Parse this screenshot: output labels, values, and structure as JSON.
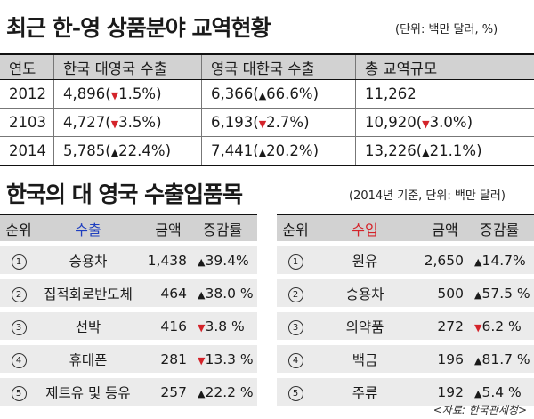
{
  "title1": "최근 한-영 상품분야 교역현황",
  "unit1": "(단위: 백만 달러, %)",
  "table1": {
    "headers": [
      "연도",
      "한국 대영국 수출",
      "영국 대한국 수출",
      "총 교역규모"
    ],
    "rows": [
      {
        "year": "2012",
        "kr": "4,896",
        "kr_dir": "down",
        "kr_pct": "1.5%",
        "uk": "6,366",
        "uk_dir": "up",
        "uk_pct": "66.6%",
        "tot": "11,262",
        "tot_dir": "",
        "tot_pct": ""
      },
      {
        "year": "2103",
        "kr": "4,727",
        "kr_dir": "down",
        "kr_pct": "3.5%",
        "uk": "6,193",
        "uk_dir": "down",
        "uk_pct": "2.7%",
        "tot": "10,920",
        "tot_dir": "down",
        "tot_pct": "3.0%"
      },
      {
        "year": "2014",
        "kr": "5,785",
        "kr_dir": "up",
        "kr_pct": "22.4%",
        "uk": "7,441",
        "uk_dir": "up",
        "uk_pct": "20.2%",
        "tot": "13,226",
        "tot_dir": "up",
        "tot_pct": "21.1%"
      }
    ]
  },
  "title2": "한국의 대 영국 수출입품목",
  "unit2": "(2014년 기준, 단위: 백만 달러)",
  "exports": {
    "header": {
      "rank": "순위",
      "item": "수출",
      "amount": "금액",
      "rate": "증감률"
    },
    "rows": [
      {
        "rank": "①",
        "item": "승용차",
        "amount": "1,438",
        "dir": "up",
        "rate": "39.4%"
      },
      {
        "rank": "②",
        "item": "집적회로반도체",
        "amount": "464",
        "dir": "up",
        "rate": "38.0 %"
      },
      {
        "rank": "③",
        "item": "선박",
        "amount": "416",
        "dir": "down",
        "rate": "3.8 %"
      },
      {
        "rank": "④",
        "item": "휴대폰",
        "amount": "281",
        "dir": "down",
        "rate": "13.3 %"
      },
      {
        "rank": "⑤",
        "item": "제트유 및 등유",
        "amount": "257",
        "dir": "up",
        "rate": "22.2 %"
      }
    ]
  },
  "imports": {
    "header": {
      "rank": "순위",
      "item": "수입",
      "amount": "금액",
      "rate": "증감률"
    },
    "rows": [
      {
        "rank": "①",
        "item": "원유",
        "amount": "2,650",
        "dir": "up",
        "rate": "14.7%"
      },
      {
        "rank": "②",
        "item": "승용차",
        "amount": "500",
        "dir": "up",
        "rate": "57.5 %"
      },
      {
        "rank": "③",
        "item": "의약품",
        "amount": "272",
        "dir": "down",
        "rate": "6.2 %"
      },
      {
        "rank": "④",
        "item": "백금",
        "amount": "196",
        "dir": "up",
        "rate": "81.7 %"
      },
      {
        "rank": "⑤",
        "item": "주류",
        "amount": "192",
        "dir": "up",
        "rate": "5.4 %"
      }
    ]
  },
  "source": "<자료: 한국관세청>",
  "colors": {
    "down": "#d4232a",
    "export_header": "#1f3fbf",
    "import_header": "#d4232a",
    "header_bg": "#d2d2d2",
    "row_bg": "#ebebeb"
  },
  "icons": {
    "up": "triangle-up-icon",
    "down": "triangle-down-icon"
  }
}
